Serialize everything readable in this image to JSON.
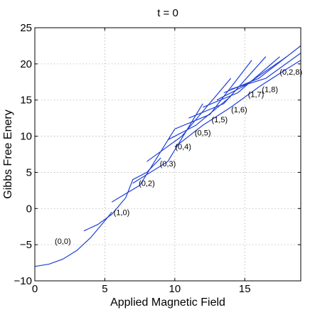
{
  "chart_data": {
    "type": "line",
    "title": "t = 0",
    "xlabel": "Applied Magnetic Field",
    "ylabel": "Gibbs Free Enery",
    "xlim": [
      0,
      19
    ],
    "ylim": [
      -10,
      25
    ],
    "xticks": [
      "0",
      "5",
      "10",
      "15"
    ],
    "yticks": [
      "−10",
      "−5",
      "0",
      "5",
      "10",
      "15",
      "20",
      "25"
    ],
    "grid": true,
    "color": "#1f3fd6",
    "series": [
      {
        "x": [
          0,
          1,
          2,
          3,
          4,
          5,
          5.5
        ],
        "y": [
          -8.0,
          -7.7,
          -7.0,
          -5.8,
          -4.0,
          -1.7,
          -0.5
        ]
      },
      {
        "x": [
          3.5,
          4.5,
          5.5,
          6.5,
          7.0,
          8.0,
          9.0
        ],
        "y": [
          -3.1,
          -2.2,
          -0.8,
          1.5,
          4.0,
          5.0,
          7.0
        ]
      },
      {
        "x": [
          5.5,
          7.5,
          10.0
        ],
        "y": [
          0.9,
          3.2,
          11.0
        ]
      },
      {
        "x": [
          7.0,
          9.5,
          12.0
        ],
        "y": [
          3.5,
          6.5,
          14.5
        ]
      },
      {
        "x": [
          8.0,
          10.5,
          14.0
        ],
        "y": [
          6.5,
          10.0,
          18.0
        ]
      },
      {
        "x": [
          9.5,
          11.5,
          14.0
        ],
        "y": [
          9.5,
          11.5,
          15.5
        ]
      },
      {
        "x": [
          10.0,
          12.5,
          15.5
        ],
        "y": [
          11.0,
          13.0,
          20.5
        ]
      },
      {
        "x": [
          11.0,
          13.5,
          16.5
        ],
        "y": [
          12.5,
          14.5,
          21.0
        ]
      },
      {
        "x": [
          12.0,
          14.5,
          17.5
        ],
        "y": [
          14.0,
          16.0,
          21.0
        ]
      },
      {
        "x": [
          13.0,
          15.0,
          18.0
        ],
        "y": [
          15.0,
          17.0,
          21.0
        ]
      },
      {
        "x": [
          13.5,
          16.0,
          19.0
        ],
        "y": [
          16.0,
          18.0,
          22.5
        ]
      },
      {
        "x": [
          14.0,
          16.5,
          19.0
        ],
        "y": [
          16.5,
          18.0,
          21.5
        ]
      },
      {
        "x": [
          10.0,
          12.0,
          14.0,
          16.0,
          18.0,
          19.0
        ],
        "y": [
          8.5,
          11.5,
          14.0,
          16.8,
          19.3,
          20.5
        ]
      }
    ],
    "annotations": [
      {
        "text": "(0,0)",
        "x": 2.0,
        "y": -4.5
      },
      {
        "text": "(1,0)",
        "x": 6.2,
        "y": -0.5
      },
      {
        "text": "(0,2)",
        "x": 8.0,
        "y": 3.5
      },
      {
        "text": "(0,3)",
        "x": 9.5,
        "y": 6.2
      },
      {
        "text": "(0,4)",
        "x": 10.6,
        "y": 8.6
      },
      {
        "text": "(0,5)",
        "x": 12.0,
        "y": 10.5
      },
      {
        "text": "(1,5)",
        "x": 13.2,
        "y": 12.3
      },
      {
        "text": "(1,6)",
        "x": 14.6,
        "y": 13.7
      },
      {
        "text": "(1,7)",
        "x": 15.8,
        "y": 15.8
      },
      {
        "text": "(1,8)",
        "x": 16.8,
        "y": 16.5
      },
      {
        "text": "(0,2,8)",
        "x": 18.3,
        "y": 18.9
      }
    ]
  }
}
